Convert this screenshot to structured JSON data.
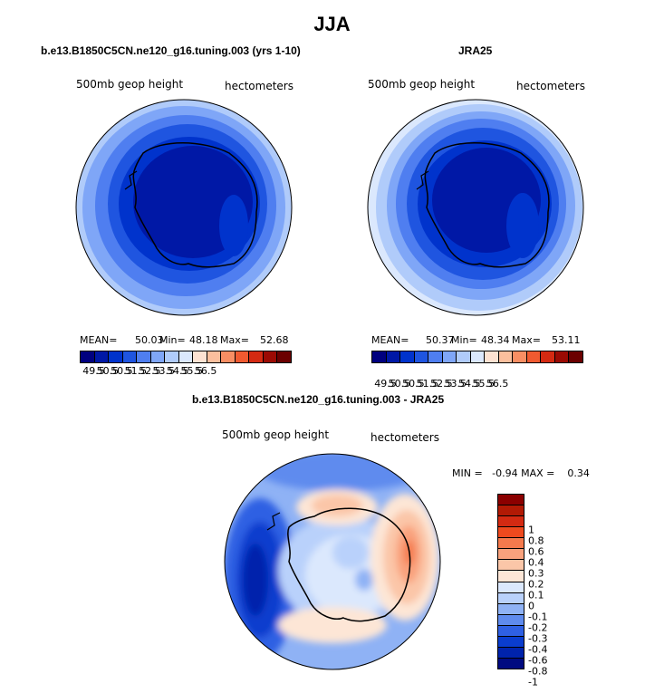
{
  "figure": {
    "title": "JJA"
  },
  "panels": {
    "model": {
      "title": "b.e13.B1850C5CN.ne120_g16.tuning.003 (yrs 1-10)",
      "variable": "500mb geop height",
      "units": "hectometers",
      "mean_label": "MEAN=",
      "mean": "50.03",
      "min_label": "Min=",
      "min": "48.18",
      "max_label": "Max=",
      "max": "52.68"
    },
    "obs": {
      "title": "JRA25",
      "variable": "500mb geop height",
      "units": "hectometers",
      "mean_label": "MEAN=",
      "mean": "50.37",
      "min_label": "Min=",
      "min": "48.34",
      "max_label": "Max=",
      "max": "53.11"
    },
    "diff": {
      "title": "b.e13.B1850C5CN.ne120_g16.tuning.003 - JRA25",
      "variable": "500mb geop height",
      "units": "hectometers",
      "minmax_text": "MIN =   -0.94 MAX =    0.34"
    }
  },
  "colorbar_abs": {
    "labels": [
      "49.5",
      "50.5",
      "50.5",
      "51.5",
      "52.5",
      "53.5",
      "54.5",
      "55.5",
      "56.5"
    ],
    "colors": [
      "#00007f",
      "#0018a6",
      "#0033cc",
      "#1f55e0",
      "#4f7ef0",
      "#7fa6f7",
      "#b0cbfa",
      "#dbe8fd",
      "#fde2d2",
      "#fbbf9d",
      "#f88e63",
      "#f05a30",
      "#d42a12",
      "#9b0a03",
      "#6b0000"
    ]
  },
  "colorbar_diff": {
    "labels": [
      "1",
      "0.8",
      "0.6",
      "0.4",
      "0.3",
      "0.2",
      "0.1",
      "0",
      "-0.1",
      "-0.2",
      "-0.3",
      "-0.4",
      "-0.6",
      "-0.8",
      "-1"
    ],
    "colors": [
      "#8b0000",
      "#b21a05",
      "#d42a12",
      "#ee4a1e",
      "#f57a4d",
      "#f9a27d",
      "#fbc6a8",
      "#fde6d6",
      "#dbe8fd",
      "#b9d1fb",
      "#8fb2f5",
      "#5f8bee",
      "#2f60e3",
      "#0a3dce",
      "#0023ac",
      "#000a80"
    ]
  }
}
